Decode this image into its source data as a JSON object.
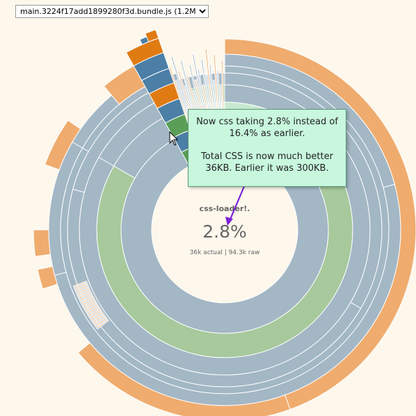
{
  "toolbar": {
    "bundle_select": {
      "selected": "main.3224f17add1899280f3d.bundle.js (1.2M)",
      "options": [
        "main.3224f17add1899280f3d.bundle.js (1.2M)"
      ]
    }
  },
  "chart_data": {
    "type": "sunburst",
    "center": {
      "label": "css-loader!.",
      "percent": "2.8%",
      "sizes": "36k actual | 94.3k raw"
    },
    "colors": {
      "blue": "#a3b7c5",
      "green": "#a7c99c",
      "lightgreen": "#c7e9cf",
      "orange": "#efac6e",
      "hi_orange": "#e07b14",
      "hi_blue": "#4b7fa6",
      "hi_green": "#5a9e58"
    },
    "rings": [
      {
        "level": 1,
        "segments": [
          {
            "color": "blue",
            "start_deg": 0,
            "end_deg": 343
          },
          {
            "color": "green",
            "start_deg": 343,
            "end_deg": 353
          },
          {
            "color": "lightgreen",
            "start_deg": 353,
            "end_deg": 360
          }
        ]
      },
      {
        "level": 2,
        "segments": [
          {
            "color": "lightgreen",
            "start_deg": 0,
            "end_deg": 60
          },
          {
            "color": "green",
            "start_deg": 60,
            "end_deg": 300
          },
          {
            "color": "blue",
            "start_deg": 300,
            "end_deg": 340
          },
          {
            "color": "green",
            "start_deg": 340,
            "end_deg": 352
          },
          {
            "color": "lightgreen",
            "start_deg": 352,
            "end_deg": 360
          }
        ]
      }
    ],
    "tooltip": {
      "line1": "Now css taking 2.8% instead of 16.4% as earlier.",
      "line2": "Total CSS is now much better 36KB. Earlier it was 300KB."
    }
  }
}
